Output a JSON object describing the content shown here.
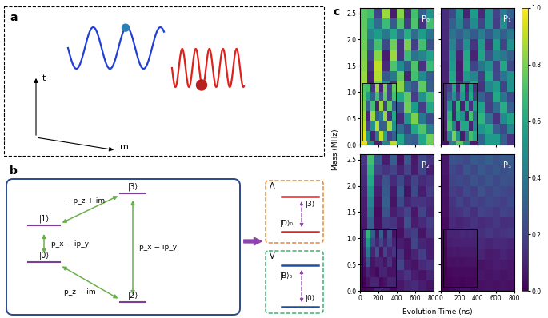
{
  "panel_a": {
    "label": "a",
    "axis_t": "t",
    "axis_m": "m"
  },
  "panel_b": {
    "label": "b",
    "levels": [
      "|3⟩",
      "|1⟩",
      "|0⟩",
      "|2⟩"
    ],
    "couplings": [
      {
        "from": "|1⟩",
        "to": "|3⟩",
        "label": "−p_z + im"
      },
      {
        "from": "|0⟩",
        "to": "|1⟩",
        "label": "p_x − ip_y"
      },
      {
        "from": "|0⟩",
        "to": "|2⟩",
        "label": "p_z − im"
      },
      {
        "from": "|2⟩",
        "to": "|3⟩",
        "label": "p_x − ip_y"
      }
    ],
    "lambda_system": {
      "label": "Λ",
      "levels": [
        "|3⟩",
        "|D⟩₀"
      ]
    },
    "v_system": {
      "label": "V",
      "levels": [
        "|B⟩₀",
        "|0⟩"
      ]
    }
  },
  "panel_c": {
    "label": "c",
    "x_label": "Evolution Time (ns)",
    "y_label": "Mass (MHz)",
    "colorbar": {
      "range": [
        0,
        1
      ],
      "color": "viridis",
      "ticks": [
        {
          "value": 0,
          "label": "0.0"
        },
        0.2,
        0.4,
        0.6,
        0.8,
        {
          "value": 1,
          "label": "1.0"
        }
      ]
    }
  },
  "chart_data": [
    {
      "type": "heatmap",
      "title": "P₀",
      "tick_labels": "y",
      "xlim": [
        0,
        800
      ],
      "ylim": [
        0,
        2.6
      ],
      "xticks": [
        0,
        200,
        400,
        600,
        800
      ],
      "yticks": [
        {
          "value": 0,
          "label": "0.0"
        },
        0.5,
        {
          "value": 1,
          "label": "1.0"
        },
        1.5,
        {
          "value": 2,
          "label": "2.0"
        },
        2.5
      ],
      "x_edges": [
        0,
        80,
        160,
        240,
        320,
        400,
        480,
        560,
        640,
        720,
        800
      ],
      "y_edges": [
        0,
        0.2,
        0.4,
        0.6,
        0.8,
        1.0,
        1.2,
        1.4,
        1.6,
        1.8,
        2.0,
        2.2,
        2.4,
        2.6
      ],
      "cells": [
        [
          0.95,
          0.5,
          0.1,
          0.45,
          0.9,
          0.6,
          0.33,
          0.3,
          0.6,
          0.78
        ],
        [
          0.93,
          0.3,
          0.16,
          0.76,
          0.86,
          0.35,
          0.2,
          0.6,
          0.72,
          0.42
        ],
        [
          0.92,
          0.18,
          0.3,
          0.88,
          0.57,
          0.12,
          0.53,
          0.8,
          0.4,
          0.22
        ],
        [
          0.9,
          0.12,
          0.48,
          0.88,
          0.3,
          0.25,
          0.78,
          0.55,
          0.18,
          0.6
        ],
        [
          0.88,
          0.08,
          0.68,
          0.8,
          0.12,
          0.6,
          0.75,
          0.18,
          0.5,
          0.7
        ],
        [
          0.86,
          0.08,
          0.8,
          0.52,
          0.15,
          0.82,
          0.38,
          0.25,
          0.75,
          0.3
        ],
        [
          0.84,
          0.1,
          0.88,
          0.28,
          0.4,
          0.75,
          0.1,
          0.7,
          0.48,
          0.28
        ],
        [
          0.82,
          0.15,
          0.9,
          0.12,
          0.72,
          0.48,
          0.28,
          0.72,
          0.15,
          0.68
        ],
        [
          0.8,
          0.22,
          0.82,
          0.08,
          0.85,
          0.15,
          0.68,
          0.38,
          0.45,
          0.58
        ],
        [
          0.78,
          0.32,
          0.7,
          0.22,
          0.78,
          0.15,
          0.8,
          0.18,
          0.7,
          0.25
        ],
        [
          0.76,
          0.45,
          0.55,
          0.4,
          0.6,
          0.35,
          0.62,
          0.35,
          0.55,
          0.38
        ],
        [
          0.75,
          0.58,
          0.35,
          0.68,
          0.28,
          0.72,
          0.18,
          0.72,
          0.15,
          0.7
        ],
        [
          0.74,
          0.7,
          0.2,
          0.85,
          0.08,
          0.82,
          0.12,
          0.7,
          0.3,
          0.5
        ]
      ],
      "inset": {
        "x_edges": [
          0,
          100,
          200,
          300,
          400,
          500,
          600,
          700,
          800
        ],
        "y_edges": [
          0,
          0.45,
          0.9,
          1.35,
          1.8,
          2.2,
          2.6
        ],
        "cells": [
          [
            0.95,
            0.5,
            0.1,
            0.4,
            0.9,
            0.6,
            0.2,
            0.3
          ],
          [
            0.9,
            0.2,
            0.5,
            0.9,
            0.3,
            0.3,
            0.85,
            0.5
          ],
          [
            0.85,
            0.1,
            0.85,
            0.3,
            0.4,
            0.85,
            0.15,
            0.6
          ],
          [
            0.8,
            0.3,
            0.7,
            0.1,
            0.85,
            0.2,
            0.75,
            0.3
          ],
          [
            0.75,
            0.55,
            0.3,
            0.7,
            0.25,
            0.75,
            0.2,
            0.7
          ],
          [
            0.72,
            0.7,
            0.15,
            0.85,
            0.1,
            0.8,
            0.2,
            0.75
          ]
        ]
      }
    },
    {
      "type": "heatmap",
      "title": "P₁",
      "tick_labels": false,
      "xlim": [
        0,
        800
      ],
      "ylim": [
        0,
        2.6
      ],
      "xticks": [
        0,
        200,
        400,
        600,
        800
      ],
      "yticks": [
        {
          "value": 0,
          "label": "0.0"
        },
        0.5,
        {
          "value": 1,
          "label": "1.0"
        },
        1.5,
        {
          "value": 2,
          "label": "2.0"
        },
        2.5
      ],
      "x_edges": [
        0,
        80,
        160,
        240,
        320,
        400,
        480,
        560,
        640,
        720,
        800
      ],
      "y_edges": [
        0,
        0.2,
        0.4,
        0.6,
        0.8,
        1.0,
        1.2,
        1.4,
        1.6,
        1.8,
        2.0,
        2.2,
        2.4,
        2.6
      ],
      "cells": [
        [
          0.04,
          0.42,
          0.75,
          0.48,
          0.08,
          0.32,
          0.55,
          0.55,
          0.3,
          0.15
        ],
        [
          0.05,
          0.6,
          0.7,
          0.2,
          0.12,
          0.52,
          0.6,
          0.3,
          0.22,
          0.45
        ],
        [
          0.06,
          0.68,
          0.6,
          0.1,
          0.35,
          0.65,
          0.38,
          0.15,
          0.48,
          0.58
        ],
        [
          0.07,
          0.72,
          0.45,
          0.1,
          0.55,
          0.58,
          0.18,
          0.35,
          0.62,
          0.3
        ],
        [
          0.08,
          0.7,
          0.25,
          0.15,
          0.65,
          0.32,
          0.2,
          0.6,
          0.38,
          0.22
        ],
        [
          0.09,
          0.65,
          0.15,
          0.38,
          0.62,
          0.15,
          0.45,
          0.55,
          0.2,
          0.5
        ],
        [
          0.1,
          0.6,
          0.08,
          0.55,
          0.45,
          0.18,
          0.6,
          0.22,
          0.38,
          0.5
        ],
        [
          0.1,
          0.55,
          0.07,
          0.62,
          0.2,
          0.38,
          0.5,
          0.2,
          0.6,
          0.22
        ],
        [
          0.11,
          0.5,
          0.1,
          0.6,
          0.1,
          0.58,
          0.25,
          0.45,
          0.4,
          0.3
        ],
        [
          0.12,
          0.45,
          0.2,
          0.5,
          0.15,
          0.55,
          0.15,
          0.55,
          0.2,
          0.5
        ],
        [
          0.12,
          0.38,
          0.3,
          0.4,
          0.28,
          0.42,
          0.28,
          0.42,
          0.3,
          0.4
        ],
        [
          0.13,
          0.3,
          0.45,
          0.22,
          0.48,
          0.2,
          0.5,
          0.18,
          0.5,
          0.22
        ],
        [
          0.13,
          0.22,
          0.5,
          0.1,
          0.55,
          0.12,
          0.5,
          0.2,
          0.42,
          0.3
        ]
      ],
      "inset": {
        "x_edges": [
          0,
          100,
          200,
          300,
          400,
          500,
          600,
          700,
          800
        ],
        "y_edges": [
          0,
          0.45,
          0.9,
          1.35,
          1.8,
          2.2,
          2.6
        ],
        "cells": [
          [
            0.05,
            0.45,
            0.8,
            0.5,
            0.08,
            0.35,
            0.7,
            0.6
          ],
          [
            0.08,
            0.7,
            0.45,
            0.08,
            0.6,
            0.6,
            0.1,
            0.45
          ],
          [
            0.1,
            0.65,
            0.1,
            0.6,
            0.5,
            0.1,
            0.7,
            0.35
          ],
          [
            0.12,
            0.5,
            0.12,
            0.65,
            0.1,
            0.6,
            0.15,
            0.55
          ],
          [
            0.13,
            0.3,
            0.5,
            0.2,
            0.55,
            0.15,
            0.6,
            0.2
          ],
          [
            0.14,
            0.2,
            0.6,
            0.1,
            0.6,
            0.1,
            0.55,
            0.15
          ]
        ]
      }
    },
    {
      "type": "heatmap",
      "title": "P₂",
      "tick_labels": true,
      "xlim": [
        0,
        800
      ],
      "ylim": [
        0,
        2.6
      ],
      "xticks": [
        0,
        200,
        400,
        600,
        800
      ],
      "yticks": [
        {
          "value": 0,
          "label": "0.0"
        },
        0.5,
        {
          "value": 1,
          "label": "1.0"
        },
        1.5,
        {
          "value": 2,
          "label": "2.0"
        },
        2.5
      ],
      "x_edges": [
        0,
        80,
        160,
        240,
        320,
        400,
        480,
        560,
        640,
        720,
        800
      ],
      "y_edges": [
        0,
        0.2,
        0.4,
        0.6,
        0.8,
        1.0,
        1.2,
        1.4,
        1.6,
        1.8,
        2.0,
        2.2,
        2.4,
        2.6
      ],
      "cells": [
        [
          0.01,
          0.03,
          0.1,
          0.08,
          0.02,
          0.06,
          0.1,
          0.12,
          0.08,
          0.05
        ],
        [
          0.01,
          0.08,
          0.12,
          0.04,
          0.03,
          0.1,
          0.15,
          0.08,
          0.05,
          0.1
        ],
        [
          0.02,
          0.12,
          0.08,
          0.02,
          0.08,
          0.2,
          0.08,
          0.05,
          0.12,
          0.15
        ],
        [
          0.03,
          0.15,
          0.05,
          0.03,
          0.15,
          0.15,
          0.04,
          0.1,
          0.18,
          0.08
        ],
        [
          0.04,
          0.2,
          0.06,
          0.05,
          0.22,
          0.08,
          0.05,
          0.2,
          0.1,
          0.08
        ],
        [
          0.05,
          0.25,
          0.05,
          0.1,
          0.22,
          0.04,
          0.15,
          0.18,
          0.05,
          0.15
        ],
        [
          0.06,
          0.3,
          0.04,
          0.17,
          0.15,
          0.07,
          0.25,
          0.08,
          0.12,
          0.18
        ],
        [
          0.07,
          0.38,
          0.03,
          0.25,
          0.08,
          0.14,
          0.2,
          0.06,
          0.2,
          0.1
        ],
        [
          0.08,
          0.45,
          0.05,
          0.3,
          0.05,
          0.22,
          0.1,
          0.15,
          0.15,
          0.12
        ],
        [
          0.1,
          0.52,
          0.08,
          0.28,
          0.07,
          0.28,
          0.05,
          0.22,
          0.08,
          0.18
        ],
        [
          0.12,
          0.6,
          0.12,
          0.25,
          0.12,
          0.22,
          0.1,
          0.2,
          0.12,
          0.15
        ],
        [
          0.14,
          0.65,
          0.2,
          0.15,
          0.2,
          0.1,
          0.2,
          0.08,
          0.2,
          0.08
        ],
        [
          0.16,
          0.7,
          0.28,
          0.08,
          0.3,
          0.05,
          0.28,
          0.07,
          0.22,
          0.15
        ]
      ],
      "inset": {
        "x_edges": [
          0,
          100,
          200,
          300,
          400,
          500,
          600,
          700,
          800
        ],
        "y_edges": [
          0,
          0.45,
          0.9,
          1.35,
          1.8,
          2.2,
          2.6
        ],
        "cells": [
          [
            0.0,
            0.05,
            0.1,
            0.1,
            0.02,
            0.05,
            0.1,
            0.1
          ],
          [
            0.02,
            0.1,
            0.05,
            0.02,
            0.1,
            0.1,
            0.05,
            0.05
          ],
          [
            0.05,
            0.25,
            0.05,
            0.1,
            0.1,
            0.05,
            0.15,
            0.05
          ],
          [
            0.08,
            0.4,
            0.1,
            0.25,
            0.05,
            0.2,
            0.1,
            0.15
          ],
          [
            0.12,
            0.55,
            0.2,
            0.1,
            0.2,
            0.1,
            0.2,
            0.1
          ],
          [
            0.15,
            0.65,
            0.3,
            0.05,
            0.3,
            0.05,
            0.25,
            0.05
          ]
        ]
      }
    },
    {
      "type": "heatmap",
      "title": "P₃",
      "tick_labels": "x",
      "xlim": [
        0,
        800
      ],
      "ylim": [
        0,
        2.6
      ],
      "xticks": [
        0,
        200,
        400,
        600,
        800
      ],
      "yticks": [
        {
          "value": 0,
          "label": "0.0"
        },
        0.5,
        {
          "value": 1,
          "label": "1.0"
        },
        1.5,
        {
          "value": 2,
          "label": "2.0"
        },
        2.5
      ],
      "x_edges": [
        0,
        80,
        160,
        240,
        320,
        400,
        480,
        560,
        640,
        720,
        800
      ],
      "y_edges": [
        0,
        0.2,
        0.4,
        0.6,
        0.8,
        1.0,
        1.2,
        1.4,
        1.6,
        1.8,
        2.0,
        2.2,
        2.4,
        2.6
      ],
      "cells": [
        [
          0.0,
          0.02,
          0.04,
          0.05,
          0.03,
          0.04,
          0.05,
          0.04,
          0.05,
          0.04
        ],
        [
          0.01,
          0.03,
          0.05,
          0.04,
          0.05,
          0.06,
          0.05,
          0.06,
          0.05,
          0.06
        ],
        [
          0.01,
          0.05,
          0.04,
          0.06,
          0.08,
          0.05,
          0.06,
          0.08,
          0.07,
          0.06
        ],
        [
          0.02,
          0.06,
          0.07,
          0.05,
          0.08,
          0.1,
          0.07,
          0.08,
          0.1,
          0.08
        ],
        [
          0.02,
          0.08,
          0.1,
          0.08,
          0.1,
          0.12,
          0.1,
          0.12,
          0.11,
          0.1
        ],
        [
          0.03,
          0.1,
          0.12,
          0.15,
          0.12,
          0.14,
          0.16,
          0.14,
          0.15,
          0.16
        ],
        [
          0.03,
          0.12,
          0.1,
          0.12,
          0.15,
          0.12,
          0.14,
          0.16,
          0.13,
          0.14
        ],
        [
          0.04,
          0.14,
          0.15,
          0.18,
          0.14,
          0.2,
          0.18,
          0.16,
          0.2,
          0.18
        ],
        [
          0.04,
          0.15,
          0.2,
          0.16,
          0.2,
          0.18,
          0.22,
          0.2,
          0.18,
          0.22
        ],
        [
          0.05,
          0.18,
          0.16,
          0.22,
          0.18,
          0.25,
          0.2,
          0.24,
          0.22,
          0.2
        ],
        [
          0.05,
          0.2,
          0.22,
          0.2,
          0.25,
          0.22,
          0.26,
          0.22,
          0.25,
          0.24
        ],
        [
          0.06,
          0.22,
          0.18,
          0.26,
          0.22,
          0.28,
          0.24,
          0.27,
          0.24,
          0.26
        ],
        [
          0.06,
          0.25,
          0.24,
          0.22,
          0.28,
          0.26,
          0.3,
          0.25,
          0.28,
          0.27
        ]
      ],
      "inset": {
        "x_edges": [
          0,
          100,
          200,
          300,
          400,
          500,
          600,
          700,
          800
        ],
        "y_edges": [
          0,
          0.45,
          0.9,
          1.35,
          1.8,
          2.2,
          2.6
        ],
        "cells": [
          [
            0.0,
            0.01,
            0.02,
            0.02,
            0.01,
            0.02,
            0.02,
            0.02
          ],
          [
            0.0,
            0.02,
            0.03,
            0.03,
            0.03,
            0.03,
            0.03,
            0.03
          ],
          [
            0.01,
            0.04,
            0.04,
            0.05,
            0.04,
            0.05,
            0.05,
            0.05
          ],
          [
            0.01,
            0.06,
            0.07,
            0.06,
            0.07,
            0.07,
            0.07,
            0.07
          ],
          [
            0.02,
            0.08,
            0.09,
            0.09,
            0.09,
            0.09,
            0.09,
            0.09
          ],
          [
            0.02,
            0.1,
            0.1,
            0.1,
            0.11,
            0.1,
            0.11,
            0.1
          ]
        ]
      }
    }
  ]
}
